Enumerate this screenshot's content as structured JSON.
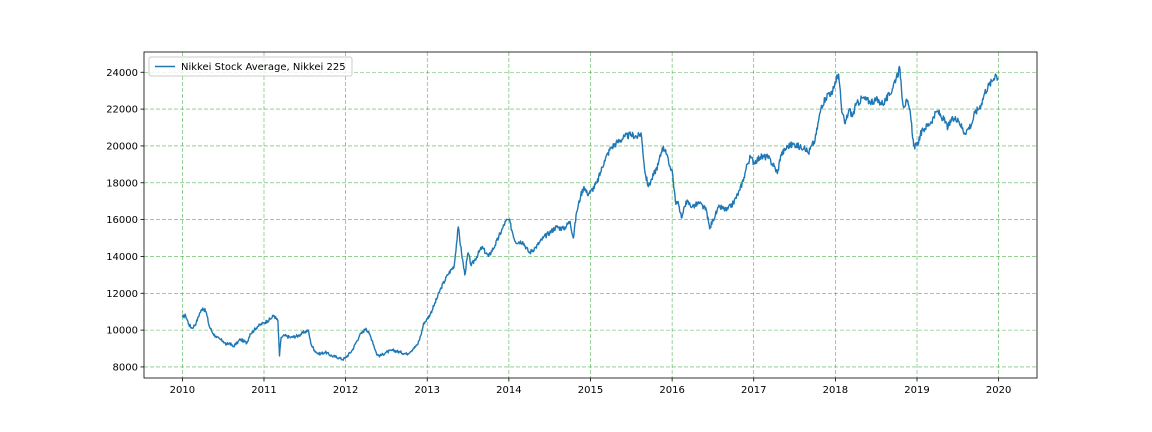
{
  "chart_data": {
    "type": "line",
    "title": "",
    "xlabel": "",
    "ylabel": "",
    "xlim": [
      2009.53,
      2020.47
    ],
    "ylim": [
      7400,
      25100
    ],
    "xticks": [
      2010,
      2011,
      2012,
      2013,
      2014,
      2015,
      2016,
      2017,
      2018,
      2019,
      2020
    ],
    "yticks": [
      8000,
      10000,
      12000,
      14000,
      16000,
      18000,
      20000,
      22000,
      24000
    ],
    "grid": true,
    "grid_color": "#2ca02c",
    "line_color": "#1f77b4",
    "legend_position": "top-left",
    "series": [
      {
        "name": "Nikkei Stock Average, Nikkei 225",
        "x": [
          2010.0,
          2010.04,
          2010.08,
          2010.12,
          2010.17,
          2010.21,
          2010.25,
          2010.29,
          2010.33,
          2010.38,
          2010.42,
          2010.46,
          2010.5,
          2010.54,
          2010.58,
          2010.62,
          2010.67,
          2010.71,
          2010.75,
          2010.79,
          2010.83,
          2010.88,
          2010.92,
          2010.96,
          2011.0,
          2011.04,
          2011.08,
          2011.12,
          2011.17,
          2011.19,
          2011.21,
          2011.25,
          2011.33,
          2011.42,
          2011.5,
          2011.54,
          2011.58,
          2011.62,
          2011.67,
          2011.75,
          2011.83,
          2011.92,
          2011.96,
          2012.0,
          2012.08,
          2012.17,
          2012.25,
          2012.29,
          2012.33,
          2012.38,
          2012.42,
          2012.5,
          2012.58,
          2012.67,
          2012.75,
          2012.83,
          2012.88,
          2012.92,
          2012.96,
          2013.0,
          2013.04,
          2013.08,
          2013.17,
          2013.25,
          2013.33,
          2013.38,
          2013.42,
          2013.46,
          2013.5,
          2013.54,
          2013.58,
          2013.67,
          2013.75,
          2013.83,
          2013.92,
          2013.96,
          2014.0,
          2014.08,
          2014.17,
          2014.25,
          2014.33,
          2014.42,
          2014.5,
          2014.58,
          2014.67,
          2014.75,
          2014.79,
          2014.83,
          2014.88,
          2014.92,
          2014.96,
          2015.0,
          2015.08,
          2015.17,
          2015.25,
          2015.33,
          2015.42,
          2015.5,
          2015.58,
          2015.62,
          2015.67,
          2015.71,
          2015.75,
          2015.83,
          2015.88,
          2015.92,
          2015.96,
          2016.0,
          2016.04,
          2016.08,
          2016.12,
          2016.17,
          2016.25,
          2016.33,
          2016.42,
          2016.46,
          2016.5,
          2016.58,
          2016.67,
          2016.75,
          2016.83,
          2016.88,
          2016.92,
          2016.96,
          2017.0,
          2017.08,
          2017.17,
          2017.25,
          2017.29,
          2017.33,
          2017.42,
          2017.5,
          2017.58,
          2017.62,
          2017.67,
          2017.71,
          2017.75,
          2017.83,
          2017.88,
          2017.92,
          2017.96,
          2018.0,
          2018.04,
          2018.08,
          2018.12,
          2018.17,
          2018.21,
          2018.25,
          2018.33,
          2018.42,
          2018.5,
          2018.58,
          2018.67,
          2018.75,
          2018.79,
          2018.83,
          2018.88,
          2018.92,
          2018.96,
          2019.0,
          2019.04,
          2019.08,
          2019.17,
          2019.25,
          2019.33,
          2019.38,
          2019.42,
          2019.5,
          2019.58,
          2019.62,
          2019.67,
          2019.71,
          2019.75,
          2019.79,
          2019.83,
          2019.88,
          2019.92,
          2019.96,
          2019.99
        ],
        "values": [
          10700,
          10800,
          10300,
          10100,
          10400,
          10900,
          11200,
          11000,
          10200,
          9800,
          9600,
          9500,
          9400,
          9200,
          9300,
          9100,
          9300,
          9500,
          9400,
          9300,
          9800,
          10000,
          10200,
          10300,
          10400,
          10500,
          10600,
          10800,
          10500,
          8600,
          9600,
          9700,
          9600,
          9700,
          9900,
          10000,
          9200,
          8900,
          8700,
          8800,
          8600,
          8500,
          8400,
          8500,
          8900,
          9700,
          10100,
          9800,
          9400,
          8700,
          8600,
          8800,
          8900,
          8800,
          8700,
          9000,
          9200,
          9700,
          10400,
          10600,
          10900,
          11300,
          12300,
          13000,
          13500,
          15600,
          14200,
          13000,
          14200,
          13500,
          13800,
          14500,
          14000,
          14600,
          15500,
          15900,
          16000,
          14800,
          14800,
          14200,
          14500,
          15000,
          15300,
          15600,
          15500,
          15900,
          15000,
          16400,
          17300,
          17800,
          17400,
          17500,
          18000,
          19200,
          19900,
          20200,
          20500,
          20600,
          20500,
          20700,
          18500,
          17800,
          18200,
          19000,
          19900,
          19800,
          19000,
          18700,
          17000,
          16800,
          16100,
          17000,
          16700,
          16900,
          16500,
          15500,
          16000,
          16700,
          16500,
          16900,
          17600,
          18300,
          19000,
          19400,
          19100,
          19400,
          19400,
          18900,
          18500,
          19500,
          20000,
          20100,
          19900,
          20000,
          19600,
          20000,
          20300,
          22200,
          22600,
          22900,
          22800,
          23500,
          23900,
          21800,
          21200,
          22000,
          21600,
          22200,
          22600,
          22400,
          22500,
          22300,
          22800,
          23800,
          24200,
          22200,
          22400,
          21700,
          20000,
          20000,
          20600,
          20900,
          21300,
          21900,
          21400,
          21000,
          21400,
          21500,
          20700,
          20900,
          21200,
          21800,
          22000,
          22300,
          22900,
          23300,
          23500,
          23900,
          23700
        ]
      }
    ]
  }
}
